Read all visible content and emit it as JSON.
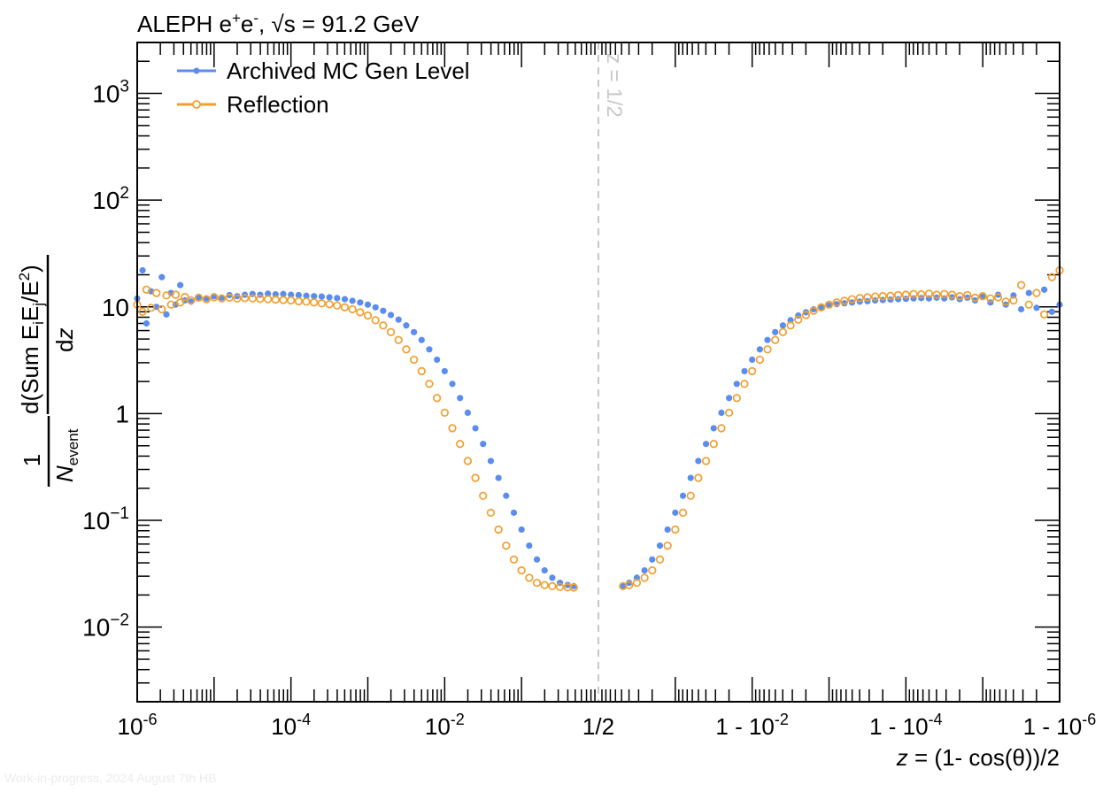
{
  "chart_data": {
    "type": "scatter",
    "title": "ALEPH e⁺e⁻, √s = 91.2 GeV",
    "title_parts": {
      "experiment": "ALEPH e",
      "sup_plus": "+",
      "mid": "e",
      "sup_minus": "-",
      "sep": ", ",
      "sqrt": "√",
      "rest": "s = 91.2 GeV"
    },
    "xlabel": "z = (1- cos(θ))/2",
    "xlabel_parts": {
      "var": "z",
      "rest": " = (1- cos(θ))/2"
    },
    "ylabel": "1/N_event d(Sum E_i E_j/E²)/dz",
    "ylabel_parts": {
      "numerator_one": "1",
      "denominator_n": "N",
      "denominator_sub": "event",
      "d_top": "d(Sum E",
      "sub_i": "i",
      "e_mid": "E",
      "sub_j": "j",
      "e_div": "/E",
      "sup_2": "2",
      "close": ")",
      "d_bottom": "d",
      "d_bottom_var": "z"
    },
    "x_scale": "double-log (log z below 1/2, log(1-z) above 1/2)",
    "y_scale": "log",
    "ylim": [
      0.002,
      3000
    ],
    "x_tick_labels": [
      {
        "base": "10",
        "exp": "-6"
      },
      {
        "base": "10",
        "exp": "-4"
      },
      {
        "base": "10",
        "exp": "-2"
      },
      {
        "base": "1/2",
        "exp": ""
      },
      {
        "base": "1 - 10",
        "exp": "-2"
      },
      {
        "base": "1 - 10",
        "exp": "-4"
      },
      {
        "base": "1 - 10",
        "exp": "-6"
      }
    ],
    "y_tick_labels": [
      {
        "value": 1000,
        "base": "10",
        "exp": "3"
      },
      {
        "value": 100,
        "base": "10",
        "exp": "2"
      },
      {
        "value": 10,
        "base": "10",
        "exp": ""
      },
      {
        "value": 1,
        "base": "1",
        "exp": ""
      },
      {
        "value": 0.1,
        "base": "10",
        "exp": "−1"
      },
      {
        "value": 0.01,
        "base": "10",
        "exp": "−2"
      }
    ],
    "annotation": "z = 1/2",
    "footer": "Work-in-progress, 2024 August 7th HB",
    "legend": {
      "placement": "top-left"
    },
    "colors": {
      "mc": "#5b8def",
      "reflection": "#f0a030",
      "guide": "#c8c8c8"
    },
    "series": [
      {
        "name": "Archived MC Gen Level",
        "marker": "filled-circle",
        "points": [
          [
            -6.0,
            12.0
          ],
          [
            -5.93,
            22.0
          ],
          [
            -5.88,
            7.0
          ],
          [
            -5.82,
            14.0
          ],
          [
            -5.75,
            10.0
          ],
          [
            -5.68,
            19.0
          ],
          [
            -5.62,
            8.5
          ],
          [
            -5.56,
            13.5
          ],
          [
            -5.5,
            10.5
          ],
          [
            -5.44,
            16.0
          ],
          [
            -5.38,
            11.5
          ],
          [
            -5.3,
            11.2
          ],
          [
            -5.2,
            12.3
          ],
          [
            -5.1,
            12.0
          ],
          [
            -5.0,
            12.6
          ],
          [
            -4.9,
            12.2
          ],
          [
            -4.8,
            12.9
          ],
          [
            -4.7,
            12.6
          ],
          [
            -4.6,
            13.0
          ],
          [
            -4.5,
            13.2
          ],
          [
            -4.4,
            13.0
          ],
          [
            -4.3,
            13.3
          ],
          [
            -4.2,
            13.1
          ],
          [
            -4.1,
            13.2
          ],
          [
            -4.0,
            13.0
          ],
          [
            -3.9,
            12.9
          ],
          [
            -3.8,
            12.7
          ],
          [
            -3.7,
            12.6
          ],
          [
            -3.6,
            12.5
          ],
          [
            -3.5,
            12.3
          ],
          [
            -3.4,
            12.1
          ],
          [
            -3.3,
            11.8
          ],
          [
            -3.2,
            11.4
          ],
          [
            -3.1,
            11.0
          ],
          [
            -3.0,
            10.5
          ],
          [
            -2.9,
            9.9
          ],
          [
            -2.8,
            9.2
          ],
          [
            -2.7,
            8.4
          ],
          [
            -2.6,
            7.6
          ],
          [
            -2.5,
            6.7
          ],
          [
            -2.4,
            5.8
          ],
          [
            -2.3,
            4.9
          ],
          [
            -2.2,
            4.0
          ],
          [
            -2.1,
            3.2
          ],
          [
            -2.0,
            2.5
          ],
          [
            -1.9,
            1.9
          ],
          [
            -1.8,
            1.4
          ],
          [
            -1.7,
            1.02
          ],
          [
            -1.6,
            0.73
          ],
          [
            -1.5,
            0.52
          ],
          [
            -1.4,
            0.36
          ],
          [
            -1.3,
            0.25
          ],
          [
            -1.2,
            0.17
          ],
          [
            -1.1,
            0.118
          ],
          [
            -1.0,
            0.082
          ],
          [
            -0.9,
            0.058
          ],
          [
            -0.8,
            0.043
          ],
          [
            -0.7,
            0.034
          ],
          [
            -0.6,
            0.029
          ],
          [
            -0.5,
            0.026
          ],
          [
            -0.4,
            0.0248
          ],
          [
            -0.32,
            0.0242
          ],
          [
            0.32,
            0.0245
          ],
          [
            0.4,
            0.026
          ],
          [
            0.5,
            0.029
          ],
          [
            0.6,
            0.034
          ],
          [
            0.7,
            0.043
          ],
          [
            0.8,
            0.058
          ],
          [
            0.9,
            0.082
          ],
          [
            1.0,
            0.118
          ],
          [
            1.1,
            0.17
          ],
          [
            1.2,
            0.25
          ],
          [
            1.3,
            0.36
          ],
          [
            1.4,
            0.52
          ],
          [
            1.5,
            0.73
          ],
          [
            1.6,
            1.02
          ],
          [
            1.7,
            1.4
          ],
          [
            1.8,
            1.9
          ],
          [
            1.9,
            2.5
          ],
          [
            2.0,
            3.2
          ],
          [
            2.1,
            4.0
          ],
          [
            2.2,
            4.9
          ],
          [
            2.3,
            5.8
          ],
          [
            2.4,
            6.7
          ],
          [
            2.5,
            7.5
          ],
          [
            2.6,
            8.3
          ],
          [
            2.7,
            8.9
          ],
          [
            2.8,
            9.5
          ],
          [
            2.9,
            9.9
          ],
          [
            3.0,
            10.3
          ],
          [
            3.1,
            10.6
          ],
          [
            3.2,
            10.8
          ],
          [
            3.3,
            11.0
          ],
          [
            3.4,
            11.2
          ],
          [
            3.5,
            11.3
          ],
          [
            3.6,
            11.5
          ],
          [
            3.7,
            11.6
          ],
          [
            3.8,
            11.7
          ],
          [
            3.9,
            11.8
          ],
          [
            4.0,
            11.9
          ],
          [
            4.1,
            12.0
          ],
          [
            4.2,
            12.1
          ],
          [
            4.3,
            12.0
          ],
          [
            4.4,
            12.2
          ],
          [
            4.5,
            12.0
          ],
          [
            4.6,
            12.3
          ],
          [
            4.7,
            11.8
          ],
          [
            4.8,
            12.2
          ],
          [
            4.9,
            11.5
          ],
          [
            5.0,
            12.4
          ],
          [
            5.1,
            11.0
          ],
          [
            5.2,
            13.0
          ],
          [
            5.3,
            10.5
          ],
          [
            5.4,
            12.8
          ],
          [
            5.5,
            9.5
          ],
          [
            5.6,
            13.5
          ],
          [
            5.7,
            9.8
          ],
          [
            5.8,
            14.5
          ],
          [
            5.9,
            9.0
          ],
          [
            6.0,
            10.5
          ]
        ]
      },
      {
        "name": "Reflection",
        "marker": "open-circle",
        "points": [
          [
            -6.0,
            10.5
          ],
          [
            -5.93,
            9.0
          ],
          [
            -5.88,
            14.5
          ],
          [
            -5.82,
            9.8
          ],
          [
            -5.75,
            13.5
          ],
          [
            -5.68,
            9.5
          ],
          [
            -5.62,
            12.8
          ],
          [
            -5.56,
            10.5
          ],
          [
            -5.5,
            13.0
          ],
          [
            -5.44,
            11.0
          ],
          [
            -5.38,
            12.4
          ],
          [
            -5.3,
            11.5
          ],
          [
            -5.2,
            12.2
          ],
          [
            -5.1,
            11.8
          ],
          [
            -5.0,
            12.3
          ],
          [
            -4.9,
            12.0
          ],
          [
            -4.8,
            12.2
          ],
          [
            -4.7,
            12.0
          ],
          [
            -4.6,
            12.1
          ],
          [
            -4.5,
            12.0
          ],
          [
            -4.4,
            11.9
          ],
          [
            -4.3,
            11.8
          ],
          [
            -4.2,
            11.7
          ],
          [
            -4.1,
            11.6
          ],
          [
            -4.0,
            11.5
          ],
          [
            -3.9,
            11.3
          ],
          [
            -3.8,
            11.2
          ],
          [
            -3.7,
            11.0
          ],
          [
            -3.6,
            10.8
          ],
          [
            -3.5,
            10.6
          ],
          [
            -3.4,
            10.3
          ],
          [
            -3.3,
            9.9
          ],
          [
            -3.2,
            9.5
          ],
          [
            -3.1,
            8.9
          ],
          [
            -3.0,
            8.3
          ],
          [
            -2.9,
            7.5
          ],
          [
            -2.8,
            6.7
          ],
          [
            -2.7,
            5.8
          ],
          [
            -2.6,
            4.9
          ],
          [
            -2.5,
            4.0
          ],
          [
            -2.4,
            3.2
          ],
          [
            -2.3,
            2.5
          ],
          [
            -2.2,
            1.9
          ],
          [
            -2.1,
            1.4
          ],
          [
            -2.0,
            1.02
          ],
          [
            -1.9,
            0.73
          ],
          [
            -1.8,
            0.52
          ],
          [
            -1.7,
            0.36
          ],
          [
            -1.6,
            0.25
          ],
          [
            -1.5,
            0.17
          ],
          [
            -1.4,
            0.118
          ],
          [
            -1.3,
            0.082
          ],
          [
            -1.2,
            0.058
          ],
          [
            -1.1,
            0.043
          ],
          [
            -1.0,
            0.034
          ],
          [
            -0.9,
            0.029
          ],
          [
            -0.8,
            0.026
          ],
          [
            -0.7,
            0.0248
          ],
          [
            -0.6,
            0.0242
          ],
          [
            -0.5,
            0.0238
          ],
          [
            -0.4,
            0.0236
          ],
          [
            -0.32,
            0.0235
          ],
          [
            0.32,
            0.0242
          ],
          [
            0.4,
            0.0248
          ],
          [
            0.5,
            0.026
          ],
          [
            0.6,
            0.029
          ],
          [
            0.7,
            0.034
          ],
          [
            0.8,
            0.043
          ],
          [
            0.9,
            0.058
          ],
          [
            1.0,
            0.082
          ],
          [
            1.1,
            0.118
          ],
          [
            1.2,
            0.17
          ],
          [
            1.3,
            0.25
          ],
          [
            1.4,
            0.36
          ],
          [
            1.5,
            0.52
          ],
          [
            1.6,
            0.73
          ],
          [
            1.7,
            1.02
          ],
          [
            1.8,
            1.4
          ],
          [
            1.9,
            1.9
          ],
          [
            2.0,
            2.5
          ],
          [
            2.1,
            3.2
          ],
          [
            2.2,
            4.0
          ],
          [
            2.3,
            4.9
          ],
          [
            2.4,
            5.8
          ],
          [
            2.5,
            6.7
          ],
          [
            2.6,
            7.6
          ],
          [
            2.7,
            8.4
          ],
          [
            2.8,
            9.2
          ],
          [
            2.9,
            9.9
          ],
          [
            3.0,
            10.5
          ],
          [
            3.1,
            11.0
          ],
          [
            3.2,
            11.4
          ],
          [
            3.3,
            11.8
          ],
          [
            3.4,
            12.1
          ],
          [
            3.5,
            12.3
          ],
          [
            3.6,
            12.5
          ],
          [
            3.7,
            12.6
          ],
          [
            3.8,
            12.7
          ],
          [
            3.9,
            12.9
          ],
          [
            4.0,
            13.0
          ],
          [
            4.1,
            13.2
          ],
          [
            4.2,
            13.1
          ],
          [
            4.3,
            13.3
          ],
          [
            4.4,
            13.0
          ],
          [
            4.5,
            13.2
          ],
          [
            4.6,
            13.0
          ],
          [
            4.7,
            12.6
          ],
          [
            4.8,
            12.9
          ],
          [
            4.9,
            12.2
          ],
          [
            5.0,
            12.6
          ],
          [
            5.1,
            12.0
          ],
          [
            5.2,
            12.3
          ],
          [
            5.3,
            11.2
          ],
          [
            5.4,
            11.5
          ],
          [
            5.5,
            16.0
          ],
          [
            5.6,
            10.5
          ],
          [
            5.7,
            13.5
          ],
          [
            5.8,
            8.5
          ],
          [
            5.9,
            19.0
          ],
          [
            6.0,
            22.0
          ]
        ]
      }
    ]
  }
}
